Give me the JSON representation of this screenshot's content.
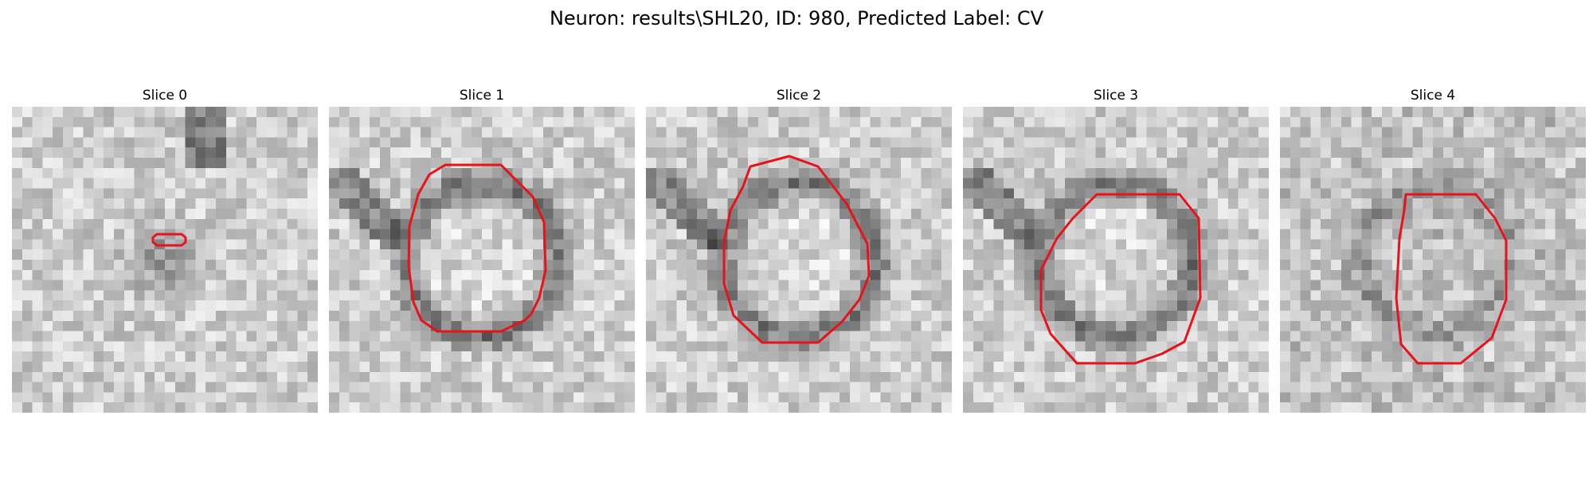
{
  "figure": {
    "title": "Neuron: results\\SHL20, ID: 980, Predicted Label: CV"
  },
  "panels": [
    {
      "title": "Slice 0",
      "tone": "dark-blob-center"
    },
    {
      "title": "Slice 1",
      "tone": "ring"
    },
    {
      "title": "Slice 2",
      "tone": "ring"
    },
    {
      "title": "Slice 3",
      "tone": "ring"
    },
    {
      "title": "Slice 4",
      "tone": "faint-ring"
    }
  ],
  "colors": {
    "contour": "#e8121a",
    "image_colormap": "grayscale"
  }
}
